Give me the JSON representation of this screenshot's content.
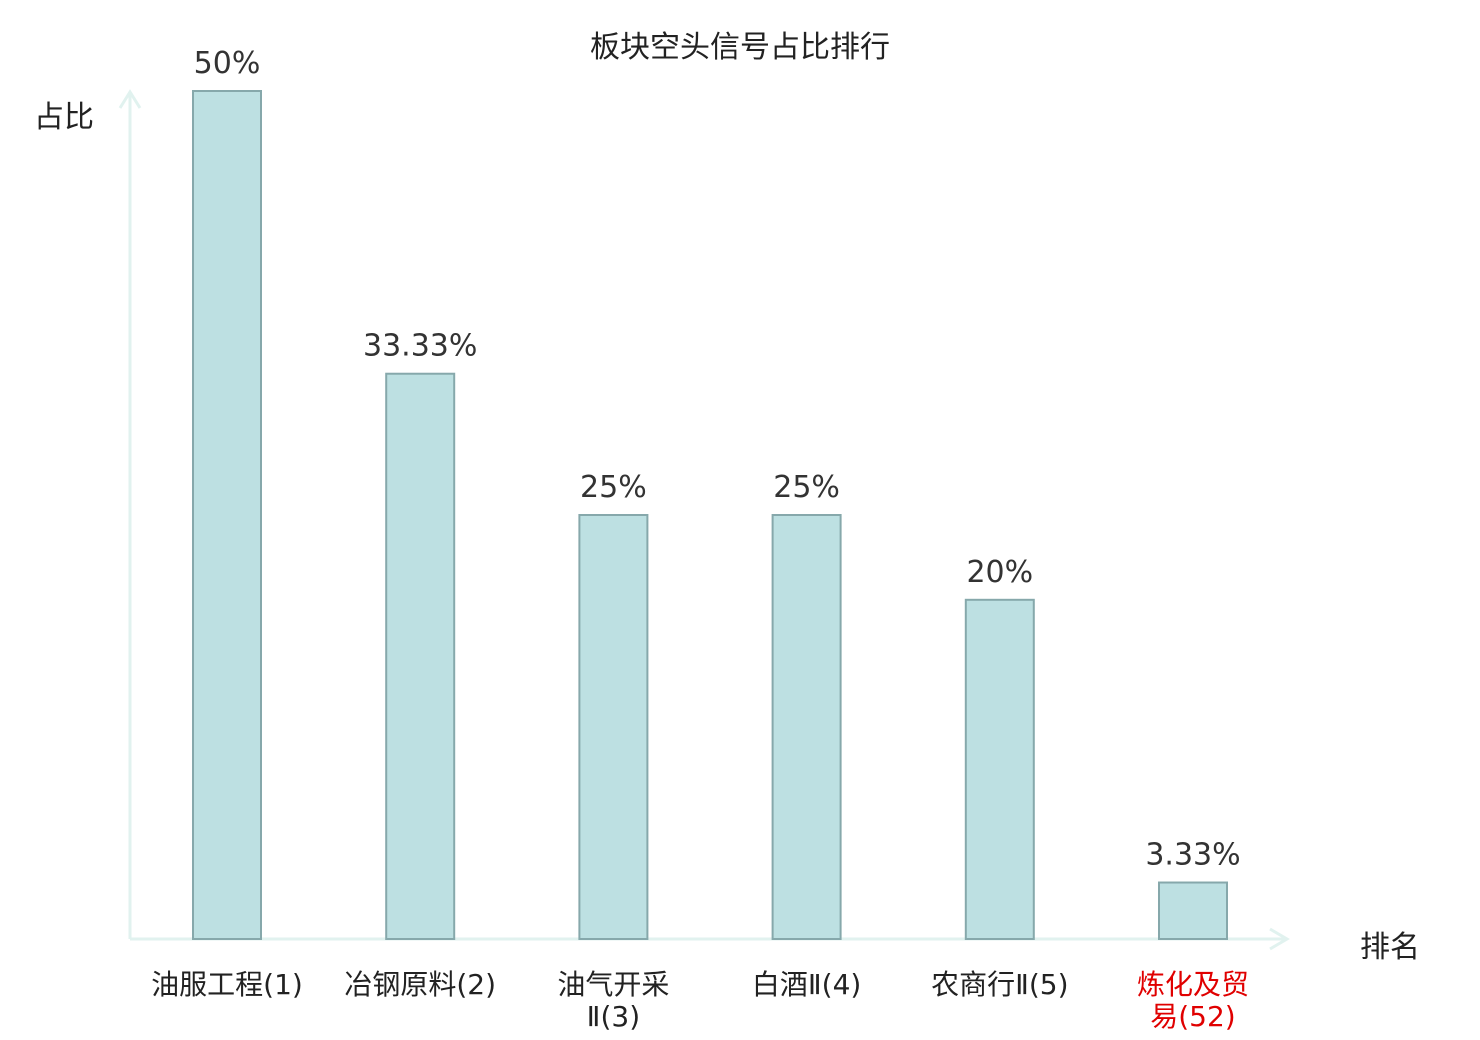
{
  "chart_data": {
    "type": "bar",
    "title": "板块空头信号占比排行",
    "ylabel": "占比",
    "xlabel": "排名",
    "categories": [
      [
        "油服工程(1)"
      ],
      [
        "冶钢原料(2)"
      ],
      [
        "油气开采",
        "Ⅱ(3)"
      ],
      [
        "白酒Ⅱ(4)"
      ],
      [
        "农商行Ⅱ(5)"
      ],
      [
        "炼化及贸",
        "易(52)"
      ]
    ],
    "values": [
      50,
      33.33,
      25,
      25,
      20,
      3.33
    ],
    "value_labels": [
      "50%",
      "33.33%",
      "25%",
      "25%",
      "20%",
      "3.33%"
    ],
    "highlight_index": 5,
    "ylim": [
      0,
      50
    ],
    "grid": false,
    "colors": {
      "bar_fill": "#bde0e2",
      "bar_stroke": "#86a8ab",
      "axis": "#e1f2ef",
      "text": "#333333",
      "highlight_text": "#e00000"
    }
  }
}
